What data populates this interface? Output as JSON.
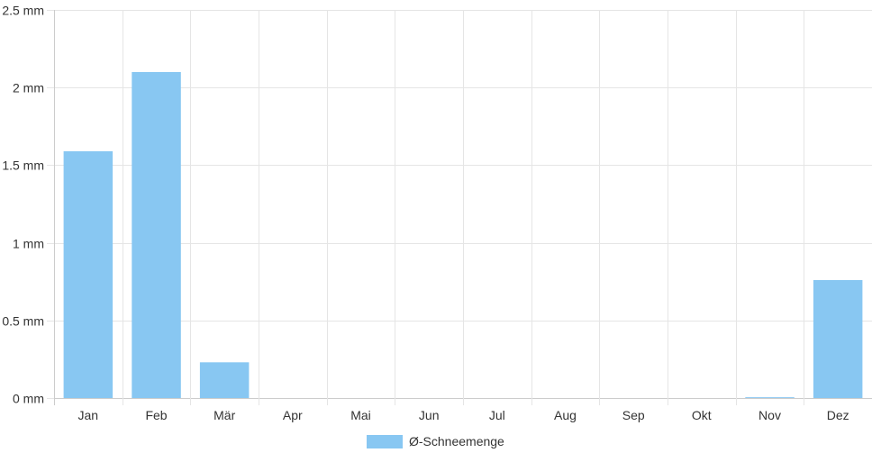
{
  "chart_data": {
    "type": "bar",
    "categories": [
      "Jan",
      "Feb",
      "Mär",
      "Apr",
      "Mai",
      "Jun",
      "Jul",
      "Aug",
      "Sep",
      "Okt",
      "Nov",
      "Dez"
    ],
    "series": [
      {
        "name": "Ø-Schneemenge",
        "values": [
          1.59,
          2.1,
          0.23,
          0,
          0,
          0,
          0,
          0,
          0,
          0,
          0.005,
          0.76
        ]
      }
    ],
    "ylim": [
      0,
      2.5
    ],
    "yticks": [
      0,
      0.5,
      1,
      1.5,
      2,
      2.5
    ],
    "ytick_labels": [
      "0 mm",
      "0.5 mm",
      "1 mm",
      "1.5 mm",
      "2 mm",
      "2.5 mm"
    ],
    "title": "",
    "xlabel": "",
    "ylabel": "",
    "grid": true,
    "legend_position": "bottom",
    "colors": {
      "bar": "#88c7f2",
      "grid": "#e5e5e5"
    }
  }
}
